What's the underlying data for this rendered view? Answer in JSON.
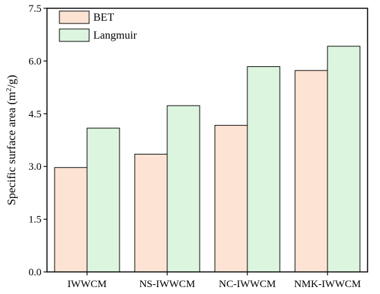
{
  "chart_data": {
    "type": "bar",
    "categories": [
      "IWWCM",
      "NS-IWWCM",
      "NC-IWWCM",
      "NMK-IWWCM"
    ],
    "series": [
      {
        "name": "BET",
        "values": [
          2.97,
          3.35,
          4.17,
          5.73
        ],
        "color": "#fde3d4"
      },
      {
        "name": "Langmuir",
        "values": [
          4.09,
          4.73,
          5.84,
          6.42
        ],
        "color": "#dcf5df"
      }
    ],
    "ylabel_main": "Specific surface area (m",
    "ylabel_sup": "2",
    "ylabel_end": "/g)",
    "xlabel": "",
    "ylim": [
      0,
      7.5
    ],
    "yticks": [
      "0.0",
      "1.5",
      "3.0",
      "4.5",
      "6.0",
      "7.5"
    ],
    "grid": false,
    "legend_position": "top-left"
  }
}
